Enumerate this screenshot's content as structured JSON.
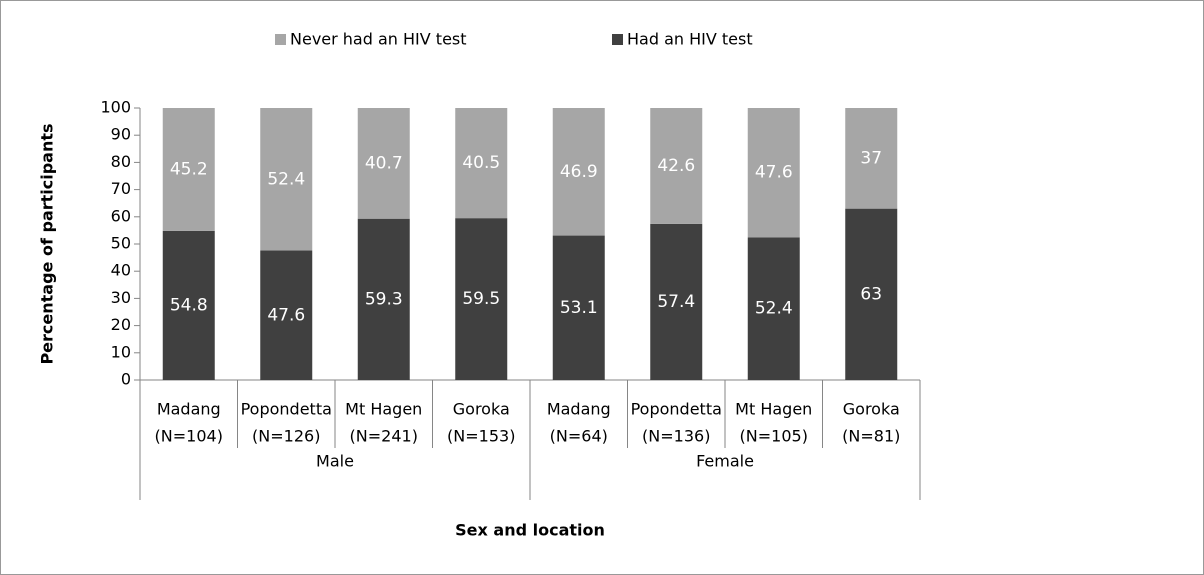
{
  "chart_data": {
    "type": "stacked_bar",
    "x_label": "Sex and location",
    "y_label": "Percentage of participants",
    "groups": [
      {
        "name": "Male",
        "categories": [
          [
            "Madang",
            "(N=104)"
          ],
          [
            "Popondetta",
            "(N=126)"
          ],
          [
            "Mt Hagen",
            "(N=241)"
          ],
          [
            "Goroka",
            "(N=153)"
          ]
        ]
      },
      {
        "name": "Female",
        "categories": [
          [
            "Madang",
            "(N=64)"
          ],
          [
            "Popondetta",
            "(N=136)"
          ],
          [
            "Mt Hagen",
            "(N=105)"
          ],
          [
            "Goroka",
            "(N=81)"
          ]
        ]
      }
    ],
    "series": [
      {
        "name": "Had an HIV test",
        "color": "#404040",
        "values": [
          54.8,
          47.6,
          59.3,
          59.5,
          53.1,
          57.4,
          52.4,
          63
        ]
      },
      {
        "name": "Never had an HIV test",
        "color": "#a6a6a6",
        "values": [
          45.2,
          52.4,
          40.7,
          40.5,
          46.9,
          42.6,
          47.6,
          37
        ]
      }
    ],
    "ylim": [
      0,
      100
    ],
    "yticks": [
      0,
      10,
      20,
      30,
      40,
      50,
      60,
      70,
      80,
      90,
      100
    ],
    "legend": "top"
  }
}
